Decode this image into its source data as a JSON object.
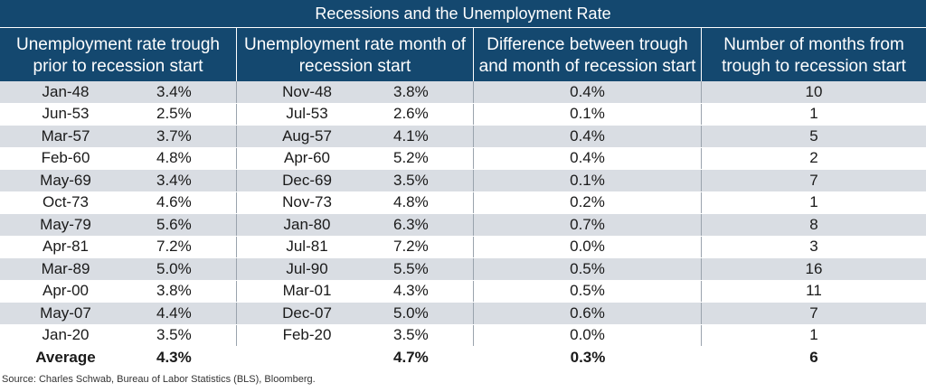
{
  "chart_data": {
    "type": "table",
    "title": "Recessions and the Unemployment Rate",
    "columns": [
      "Unemployment rate trough prior to recession start",
      "Unemployment rate month of recession start",
      "Difference between trough and month of recession start",
      "Number of months from trough to recession start"
    ],
    "rows": [
      {
        "trough_date": "Jan-48",
        "trough_rate": "3.4%",
        "start_date": "Nov-48",
        "start_rate": "3.8%",
        "difference": "0.4%",
        "months": "10"
      },
      {
        "trough_date": "Jun-53",
        "trough_rate": "2.5%",
        "start_date": "Jul-53",
        "start_rate": "2.6%",
        "difference": "0.1%",
        "months": "1"
      },
      {
        "trough_date": "Mar-57",
        "trough_rate": "3.7%",
        "start_date": "Aug-57",
        "start_rate": "4.1%",
        "difference": "0.4%",
        "months": "5"
      },
      {
        "trough_date": "Feb-60",
        "trough_rate": "4.8%",
        "start_date": "Apr-60",
        "start_rate": "5.2%",
        "difference": "0.4%",
        "months": "2"
      },
      {
        "trough_date": "May-69",
        "trough_rate": "3.4%",
        "start_date": "Dec-69",
        "start_rate": "3.5%",
        "difference": "0.1%",
        "months": "7"
      },
      {
        "trough_date": "Oct-73",
        "trough_rate": "4.6%",
        "start_date": "Nov-73",
        "start_rate": "4.8%",
        "difference": "0.2%",
        "months": "1"
      },
      {
        "trough_date": "May-79",
        "trough_rate": "5.6%",
        "start_date": "Jan-80",
        "start_rate": "6.3%",
        "difference": "0.7%",
        "months": "8"
      },
      {
        "trough_date": "Apr-81",
        "trough_rate": "7.2%",
        "start_date": "Jul-81",
        "start_rate": "7.2%",
        "difference": "0.0%",
        "months": "3"
      },
      {
        "trough_date": "Mar-89",
        "trough_rate": "5.0%",
        "start_date": "Jul-90",
        "start_rate": "5.5%",
        "difference": "0.5%",
        "months": "16"
      },
      {
        "trough_date": "Apr-00",
        "trough_rate": "3.8%",
        "start_date": "Mar-01",
        "start_rate": "4.3%",
        "difference": "0.5%",
        "months": "11"
      },
      {
        "trough_date": "May-07",
        "trough_rate": "4.4%",
        "start_date": "Dec-07",
        "start_rate": "5.0%",
        "difference": "0.6%",
        "months": "7"
      },
      {
        "trough_date": "Jan-20",
        "trough_rate": "3.5%",
        "start_date": "Feb-20",
        "start_rate": "3.5%",
        "difference": "0.0%",
        "months": "1"
      }
    ],
    "average": {
      "label": "Average",
      "trough_rate": "4.3%",
      "start_rate": "4.7%",
      "difference": "0.3%",
      "months": "6"
    },
    "source": "Source: Charles Schwab, Bureau of Labor Statistics (BLS), Bloomberg."
  },
  "colors": {
    "header_bg": "#14486f",
    "band_bg": "#d9dde3"
  }
}
